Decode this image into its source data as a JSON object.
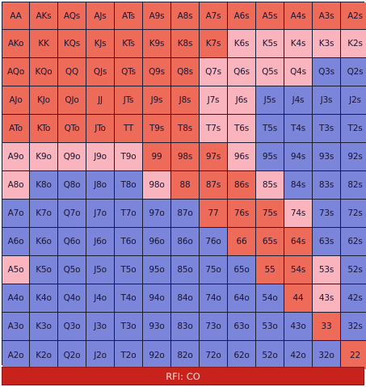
{
  "colors": {
    "raise": "#ee6b5a",
    "mixed": "#f9b4bd",
    "fold": "#7b85d9",
    "grid_line": "#1b1d34",
    "footer_bg": "#c8221d",
    "footer_text": "#f4d6d2"
  },
  "ranks": [
    "A",
    "K",
    "Q",
    "J",
    "T",
    "9",
    "8",
    "7",
    "6",
    "5",
    "4",
    "3",
    "2"
  ],
  "grid": [
    [
      "r",
      "r",
      "r",
      "r",
      "r",
      "r",
      "r",
      "r",
      "r",
      "r",
      "r",
      "r",
      "r"
    ],
    [
      "r",
      "r",
      "r",
      "r",
      "r",
      "r",
      "r",
      "r",
      "m",
      "m",
      "m",
      "m",
      "m"
    ],
    [
      "r",
      "r",
      "r",
      "r",
      "r",
      "r",
      "r",
      "m",
      "m",
      "m",
      "m",
      "f",
      "f"
    ],
    [
      "r",
      "r",
      "r",
      "r",
      "r",
      "r",
      "r",
      "m",
      "m",
      "f",
      "f",
      "f",
      "f"
    ],
    [
      "r",
      "r",
      "r",
      "r",
      "r",
      "r",
      "r",
      "m",
      "m",
      "f",
      "f",
      "f",
      "f"
    ],
    [
      "m",
      "m",
      "m",
      "m",
      "m",
      "r",
      "r",
      "r",
      "m",
      "f",
      "f",
      "f",
      "f"
    ],
    [
      "m",
      "f",
      "f",
      "f",
      "f",
      "m",
      "r",
      "r",
      "r",
      "m",
      "f",
      "f",
      "f"
    ],
    [
      "f",
      "f",
      "f",
      "f",
      "f",
      "f",
      "f",
      "r",
      "r",
      "r",
      "m",
      "f",
      "f"
    ],
    [
      "f",
      "f",
      "f",
      "f",
      "f",
      "f",
      "f",
      "f",
      "r",
      "r",
      "r",
      "f",
      "f"
    ],
    [
      "m",
      "f",
      "f",
      "f",
      "f",
      "f",
      "f",
      "f",
      "f",
      "r",
      "r",
      "m",
      "f"
    ],
    [
      "f",
      "f",
      "f",
      "f",
      "f",
      "f",
      "f",
      "f",
      "f",
      "f",
      "r",
      "m",
      "f"
    ],
    [
      "f",
      "f",
      "f",
      "f",
      "f",
      "f",
      "f",
      "f",
      "f",
      "f",
      "f",
      "r",
      "f"
    ],
    [
      "f",
      "f",
      "f",
      "f",
      "f",
      "f",
      "f",
      "f",
      "f",
      "f",
      "f",
      "f",
      "r"
    ]
  ],
  "footer": {
    "label": "RFI: CO"
  }
}
